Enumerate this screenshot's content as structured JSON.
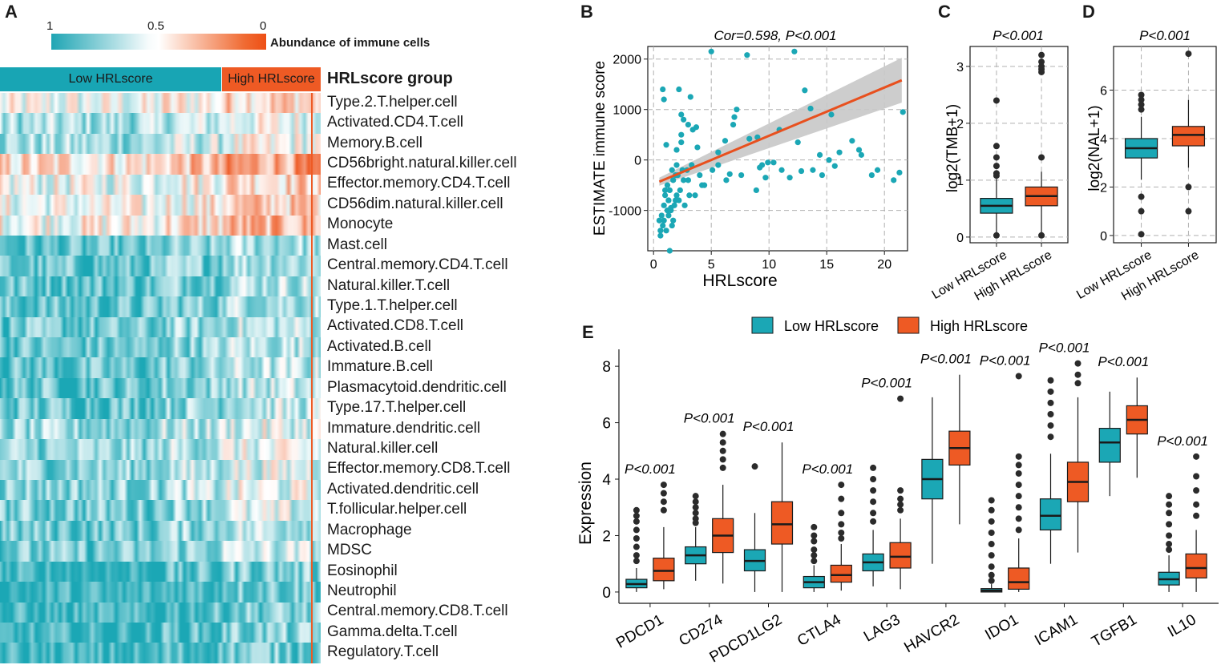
{
  "panel_labels": {
    "a": "A",
    "b": "B",
    "c": "C",
    "d": "D",
    "e": "E"
  },
  "heatmap": {
    "colorbar_ticks": [
      "1",
      "0.5",
      "0"
    ],
    "colorbar_title": "Abundance of immune cells",
    "group_title": "HRLscore group",
    "groups": [
      {
        "label": "Low HRLscore",
        "color": "#18a5b4"
      },
      {
        "label": "High HRLscore",
        "color": "#ee5a24"
      }
    ],
    "rows": [
      "Type.2.T.helper.cell",
      "Activated.CD4.T.cell",
      "Memory.B.cell",
      "CD56bright.natural.killer.cell",
      "Effector.memory.CD4.T.cell",
      "CD56dim.natural.killer.cell",
      "Monocyte",
      "Mast.cell",
      "Central.memory.CD4.T.cell",
      "Natural.killer.T.cell",
      "Type.1.T.helper.cell",
      "Activated.CD8.T.cell",
      "Activated.B.cell",
      "Immature.B.cell",
      "Plasmacytoid.dendritic.cell",
      "Type.17.T.helper.cell",
      "Immature.dendritic.cell",
      "Natural.killer.cell",
      "Effector.memory.CD8.T.cell",
      "Activated.dendritic.cell",
      "T.follicular.helper.cell",
      "Macrophage",
      "MDSC",
      "Eosinophil",
      "Neutrophil",
      "Central.memory.CD8.T.cell",
      "Gamma.delta.T.cell",
      "Regulatory.T.cell"
    ]
  },
  "chart_data": [
    {
      "type": "scatter",
      "title": "Cor=0.598, P<0.001",
      "xlabel": "HRLscore",
      "ylabel": "ESTIMATE immune score",
      "xlim": [
        -0.5,
        22
      ],
      "ylim": [
        -1800,
        2250
      ],
      "xticks": [
        0,
        5,
        10,
        15,
        20
      ],
      "yticks": [
        -1000,
        0,
        1000,
        2000
      ],
      "x": [
        5.0,
        8.1,
        12.2,
        13.1,
        2.2,
        0.8,
        3.2,
        0.9,
        7.2,
        13.6,
        21.6,
        2.4,
        7.0,
        3.0,
        3.7,
        2.4,
        8.3,
        9.0,
        6.2,
        17.2,
        18.0,
        1.1,
        3.8,
        2.0,
        9.4,
        12.8,
        13.8,
        9.9,
        9.2,
        15.2,
        15.7,
        18.9,
        19.4,
        21.3,
        20.8,
        11.8,
        14.6,
        10.4,
        14.4,
        16.1,
        17.8,
        12.5,
        10.9,
        15.4,
        3.4,
        4.2,
        2.6,
        1.7,
        7.6,
        6.6,
        11.1,
        5.6,
        1.4,
        1.6,
        6.3,
        9.7,
        1.2,
        2.7,
        3.1,
        2.3,
        1.9,
        4.4,
        1.5,
        0.9,
        1.3,
        2.1,
        5.1,
        8.9,
        2.9,
        1.0,
        1.7,
        0.6,
        1.8,
        2.5,
        1.1,
        3.3,
        1.4,
        0.8,
        2.0,
        4.0,
        1.2,
        2.4,
        6.9,
        1.6,
        0.7,
        1.3,
        5.6,
        2.6,
        1.0,
        0.9,
        3.6,
        1.9,
        1.5,
        2.2,
        0.6,
        1.2,
        2.0,
        1.3,
        0.5,
        3.0
      ],
      "y": [
        2150,
        2080,
        2150,
        1380,
        1400,
        1400,
        1250,
        1200,
        1000,
        1020,
        950,
        900,
        850,
        700,
        650,
        350,
        420,
        450,
        380,
        380,
        100,
        300,
        250,
        200,
        -100,
        -220,
        -200,
        -50,
        -150,
        0,
        -120,
        -300,
        -200,
        -250,
        -400,
        -350,
        -300,
        -50,
        100,
        150,
        200,
        350,
        600,
        900,
        600,
        -500,
        -400,
        -1200,
        -300,
        -280,
        -200,
        -100,
        -1800,
        -1300,
        -400,
        -350,
        -1000,
        -900,
        -700,
        -600,
        -800,
        -500,
        -950,
        -1200,
        -1100,
        -300,
        -200,
        -600,
        -200,
        -700,
        -400,
        -1500,
        -900,
        -200,
        -1400,
        -100,
        -600,
        -1300,
        -100,
        -300,
        -1000,
        500,
        700,
        -200,
        -1100,
        -800,
        150,
        800,
        -600,
        -900,
        -700,
        -300,
        -1000,
        -800,
        -1400,
        -500,
        -700,
        -800,
        -1200,
        -400
      ],
      "trend": {
        "x": [
          0.5,
          21.5
        ],
        "y": [
          -430,
          1580
        ]
      }
    },
    {
      "type": "box",
      "title": "P<0.001",
      "ylabel": "log2(TMB+1)",
      "categories": [
        "Low HRLscore",
        "High HRLscore"
      ],
      "ylim": [
        -0.1,
        3.35
      ],
      "yticks": [
        0,
        1,
        2,
        3
      ],
      "series": [
        {
          "name": "Low HRLscore",
          "min": 0.05,
          "q1": 0.42,
          "median": 0.55,
          "q3": 0.68,
          "max": 1.02,
          "outliers": [
            2.4,
            1.6,
            1.4,
            1.25,
            1.12,
            1.08,
            0.03
          ]
        },
        {
          "name": "High HRLscore",
          "min": 0.05,
          "q1": 0.55,
          "median": 0.72,
          "q3": 0.88,
          "max": 1.15,
          "outliers": [
            3.2,
            3.08,
            3.0,
            2.95,
            2.9,
            1.4,
            0.03
          ]
        }
      ]
    },
    {
      "type": "box",
      "title": "P<0.001",
      "ylabel": "log2(NAL+1)",
      "categories": [
        "Low HRLscore",
        "High HRLscore"
      ],
      "ylim": [
        -0.3,
        7.8
      ],
      "yticks": [
        0,
        2,
        4,
        6
      ],
      "series": [
        {
          "name": "Low HRLscore",
          "min": 2.3,
          "q1": 3.2,
          "median": 3.6,
          "q3": 4.0,
          "max": 4.9,
          "outliers": [
            5.8,
            5.6,
            5.4,
            5.2,
            1.6,
            1.0,
            0.05
          ]
        },
        {
          "name": "High HRLscore",
          "min": 2.8,
          "q1": 3.7,
          "median": 4.15,
          "q3": 4.5,
          "max": 5.6,
          "outliers": [
            7.5,
            2.0,
            1.0
          ]
        }
      ]
    },
    {
      "type": "box",
      "ylabel": "Expression",
      "legend": [
        "Low HRLscore",
        "High HRLscore"
      ],
      "categories": [
        "PDCD1",
        "CD274",
        "PDCD1LG2",
        "CTLA4",
        "LAG3",
        "HAVCR2",
        "IDO1",
        "ICAM1",
        "TGFB1",
        "IL10"
      ],
      "annotations": [
        "P<0.001",
        "P<0.001",
        "P<0.001",
        "P<0.001",
        "P<0.001",
        "P<0.001",
        "P<0.001",
        "P<0.001",
        "P<0.001",
        "P<0.001"
      ],
      "ylim": [
        -0.4,
        8.6
      ],
      "yticks": [
        0,
        2,
        4,
        6,
        8
      ],
      "low": [
        {
          "min": 0,
          "q1": 0.15,
          "median": 0.28,
          "q3": 0.45,
          "max": 0.85,
          "outliers": [
            2.9,
            2.7,
            2.5,
            2.2,
            1.9,
            1.6,
            1.3,
            1.1
          ]
        },
        {
          "min": 0.4,
          "q1": 1.0,
          "median": 1.3,
          "q3": 1.6,
          "max": 2.3,
          "outliers": [
            3.4,
            3.2,
            3.0,
            2.8,
            2.6,
            2.45
          ]
        },
        {
          "min": 0,
          "q1": 0.75,
          "median": 1.1,
          "q3": 1.5,
          "max": 2.8,
          "outliers": [
            4.45
          ]
        },
        {
          "min": 0,
          "q1": 0.15,
          "median": 0.35,
          "q3": 0.55,
          "max": 0.95,
          "outliers": [
            2.3,
            2.0,
            1.8,
            1.5,
            1.3,
            1.1
          ]
        },
        {
          "min": 0.2,
          "q1": 0.75,
          "median": 1.05,
          "q3": 1.35,
          "max": 2.2,
          "outliers": [
            4.4,
            4.0,
            3.6,
            3.2,
            2.8,
            2.5
          ]
        },
        {
          "min": 1.0,
          "q1": 3.3,
          "median": 4.0,
          "q3": 4.7,
          "max": 6.9,
          "outliers": []
        },
        {
          "min": 0,
          "q1": 0,
          "median": 0.05,
          "q3": 0.12,
          "max": 0.28,
          "outliers": [
            3.25,
            2.9,
            2.5,
            2.1,
            1.7,
            1.3,
            0.9,
            0.6,
            0.4
          ]
        },
        {
          "min": 1.0,
          "q1": 2.2,
          "median": 2.7,
          "q3": 3.3,
          "max": 4.9,
          "outliers": [
            7.5,
            7.1,
            6.7,
            6.3,
            5.9,
            5.5
          ]
        },
        {
          "min": 3.4,
          "q1": 4.6,
          "median": 5.3,
          "q3": 5.8,
          "max": 7.1,
          "outliers": []
        },
        {
          "min": 0,
          "q1": 0.25,
          "median": 0.45,
          "q3": 0.7,
          "max": 1.3,
          "outliers": [
            3.4,
            3.1,
            2.8,
            2.4,
            2.0,
            1.7,
            1.5
          ]
        }
      ],
      "high": [
        {
          "min": 0.1,
          "q1": 0.4,
          "median": 0.75,
          "q3": 1.2,
          "max": 2.3,
          "outliers": [
            3.8,
            3.5,
            3.2,
            2.9
          ]
        },
        {
          "min": 0.3,
          "q1": 1.4,
          "median": 2.0,
          "q3": 2.6,
          "max": 3.8,
          "outliers": [
            5.6,
            5.3,
            5.0,
            4.7,
            4.4
          ]
        },
        {
          "min": 0,
          "q1": 1.7,
          "median": 2.4,
          "q3": 3.2,
          "max": 5.3,
          "outliers": []
        },
        {
          "min": 0.05,
          "q1": 0.35,
          "median": 0.6,
          "q3": 0.95,
          "max": 1.7,
          "outliers": [
            3.8,
            3.3,
            2.8,
            2.4,
            2.1,
            1.9
          ]
        },
        {
          "min": 0.1,
          "q1": 0.85,
          "median": 1.25,
          "q3": 1.75,
          "max": 2.6,
          "outliers": [
            6.85,
            3.6,
            3.3,
            3.1,
            2.9
          ]
        },
        {
          "min": 2.4,
          "q1": 4.5,
          "median": 5.1,
          "q3": 5.7,
          "max": 7.7,
          "outliers": []
        },
        {
          "min": 0,
          "q1": 0.1,
          "median": 0.35,
          "q3": 0.85,
          "max": 1.9,
          "outliers": [
            7.65,
            4.8,
            4.5,
            4.2,
            3.8,
            3.4,
            3.0,
            2.6,
            2.2
          ]
        },
        {
          "min": 1.4,
          "q1": 3.2,
          "median": 3.9,
          "q3": 4.6,
          "max": 6.9,
          "outliers": [
            8.1,
            7.7,
            7.4
          ]
        },
        {
          "min": 4.05,
          "q1": 5.6,
          "median": 6.1,
          "q3": 6.6,
          "max": 7.6,
          "outliers": []
        },
        {
          "min": 0,
          "q1": 0.5,
          "median": 0.85,
          "q3": 1.35,
          "max": 2.2,
          "outliers": [
            4.8,
            4.1,
            3.6,
            3.1,
            2.7
          ]
        }
      ]
    }
  ],
  "colors": {
    "low": "#1ba7b5",
    "high": "#ee5a24",
    "grid": "#b0b0b0",
    "axis": "#1a1a1a",
    "trend": "#e8501e",
    "ci": "#c8c8c8"
  }
}
